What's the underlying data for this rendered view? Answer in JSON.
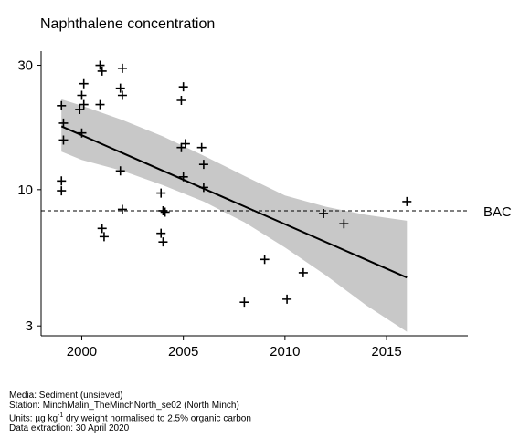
{
  "chart_data": {
    "type": "scatter",
    "title": "Naphthalene concentration",
    "xlabel": "",
    "ylabel": "",
    "x_scale": "linear",
    "y_scale": "log",
    "xlim": [
      1998,
      2019
    ],
    "ylim": [
      2.75,
      34
    ],
    "x_ticks": [
      2000,
      2005,
      2010,
      2015
    ],
    "y_ticks": [
      3,
      10,
      30
    ],
    "grid": false,
    "points": [
      {
        "x": 1999.0,
        "y": 21.0
      },
      {
        "x": 1999.1,
        "y": 18.0
      },
      {
        "x": 1999.1,
        "y": 15.5
      },
      {
        "x": 1999.0,
        "y": 10.8
      },
      {
        "x": 1999.0,
        "y": 9.9
      },
      {
        "x": 2000.0,
        "y": 23.0
      },
      {
        "x": 2000.1,
        "y": 21.2
      },
      {
        "x": 1999.9,
        "y": 20.3
      },
      {
        "x": 2000.1,
        "y": 25.5
      },
      {
        "x": 2000.0,
        "y": 16.5
      },
      {
        "x": 2000.9,
        "y": 30.0
      },
      {
        "x": 2001.0,
        "y": 28.5
      },
      {
        "x": 2000.9,
        "y": 21.2
      },
      {
        "x": 2001.0,
        "y": 7.1
      },
      {
        "x": 2001.1,
        "y": 6.6
      },
      {
        "x": 2002.0,
        "y": 29.2
      },
      {
        "x": 2001.9,
        "y": 24.5
      },
      {
        "x": 2002.0,
        "y": 23.0
      },
      {
        "x": 2001.9,
        "y": 11.8
      },
      {
        "x": 2002.0,
        "y": 8.4
      },
      {
        "x": 2003.9,
        "y": 9.7
      },
      {
        "x": 2004.0,
        "y": 8.3
      },
      {
        "x": 2004.1,
        "y": 8.2
      },
      {
        "x": 2003.9,
        "y": 6.8
      },
      {
        "x": 2004.0,
        "y": 6.3
      },
      {
        "x": 2005.0,
        "y": 24.8
      },
      {
        "x": 2004.9,
        "y": 22.0
      },
      {
        "x": 2005.1,
        "y": 15.0
      },
      {
        "x": 2004.9,
        "y": 14.5
      },
      {
        "x": 2005.0,
        "y": 11.2
      },
      {
        "x": 2005.9,
        "y": 14.5
      },
      {
        "x": 2006.0,
        "y": 12.5
      },
      {
        "x": 2006.0,
        "y": 10.2
      },
      {
        "x": 2008.0,
        "y": 3.7
      },
      {
        "x": 2009.0,
        "y": 5.4
      },
      {
        "x": 2010.1,
        "y": 3.8
      },
      {
        "x": 2010.9,
        "y": 4.8
      },
      {
        "x": 2011.9,
        "y": 8.1
      },
      {
        "x": 2012.9,
        "y": 7.4
      },
      {
        "x": 2016.0,
        "y": 9.0
      }
    ],
    "trend": {
      "x": [
        1999,
        2016
      ],
      "y": [
        17.5,
        4.6
      ]
    },
    "confidence_band": {
      "x": [
        1999,
        2000,
        2002,
        2004,
        2006,
        2008,
        2010,
        2012,
        2014,
        2016
      ],
      "upper": [
        22.2,
        21.0,
        18.5,
        16.0,
        13.5,
        11.3,
        9.5,
        8.6,
        8.0,
        7.6
      ],
      "lower": [
        14.0,
        13.0,
        11.8,
        10.4,
        9.0,
        7.5,
        6.0,
        4.7,
        3.6,
        2.85
      ]
    },
    "reference_line": {
      "label": "BAC",
      "y": 8.3,
      "style": "dashed"
    },
    "colors": {
      "points": "#000000",
      "trend": "#000000",
      "band": "#c8c8c8",
      "reference": "#000000"
    }
  },
  "footer": {
    "media": "Media: Sediment (unsieved)",
    "station": "Station: MinchMalin_TheMinchNorth_se02 (North Minch)",
    "units_prefix": "Units: µg kg",
    "units_sup": "-1",
    "units_suffix": " dry weight normalised to 2.5% organic carbon",
    "extraction": "Data extraction: 30 April 2020"
  }
}
